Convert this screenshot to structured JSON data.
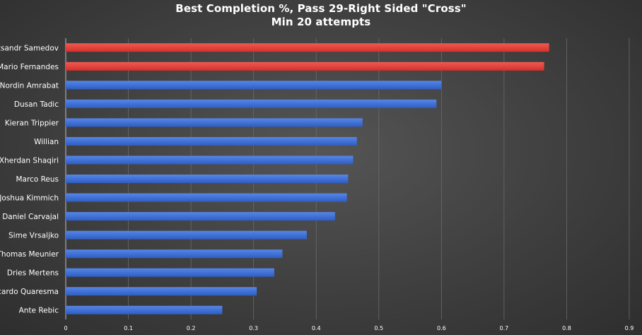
{
  "chart_data": {
    "type": "bar",
    "orientation": "horizontal",
    "title": "Best Completion %, Pass 29-Right Sided \"Cross\"",
    "subtitle": "Min 20 attempts",
    "xlabel": "",
    "ylabel": "",
    "xlim": [
      0,
      0.9
    ],
    "xticks": [
      "0",
      "0.1",
      "0.2",
      "0.3",
      "0.4",
      "0.5",
      "0.6",
      "0.7",
      "0.8",
      "0.9"
    ],
    "grid": true,
    "categories": [
      "Aleksandr Samedov",
      "Mario Fernandes",
      "Nordin Amrabat",
      "Dusan Tadic",
      "Kieran Trippier",
      "Willian",
      "Xherdan Shaqiri",
      "Marco Reus",
      "Joshua Kimmich",
      "Daniel Carvajal",
      "Sime Vrsaljko",
      "Thomas Meunier",
      "Dries Mertens",
      "Ricardo Quaresma",
      "Ante Rebic"
    ],
    "values": [
      0.772,
      0.764,
      0.6,
      0.592,
      0.474,
      0.465,
      0.459,
      0.451,
      0.449,
      0.43,
      0.385,
      0.346,
      0.333,
      0.305,
      0.25
    ],
    "colors": [
      "#e8413a",
      "#e8413a",
      "#3d6fd6",
      "#3d6fd6",
      "#3d6fd6",
      "#3d6fd6",
      "#3d6fd6",
      "#3d6fd6",
      "#3d6fd6",
      "#3d6fd6",
      "#3d6fd6",
      "#3d6fd6",
      "#3d6fd6",
      "#3d6fd6",
      "#3d6fd6"
    ]
  }
}
